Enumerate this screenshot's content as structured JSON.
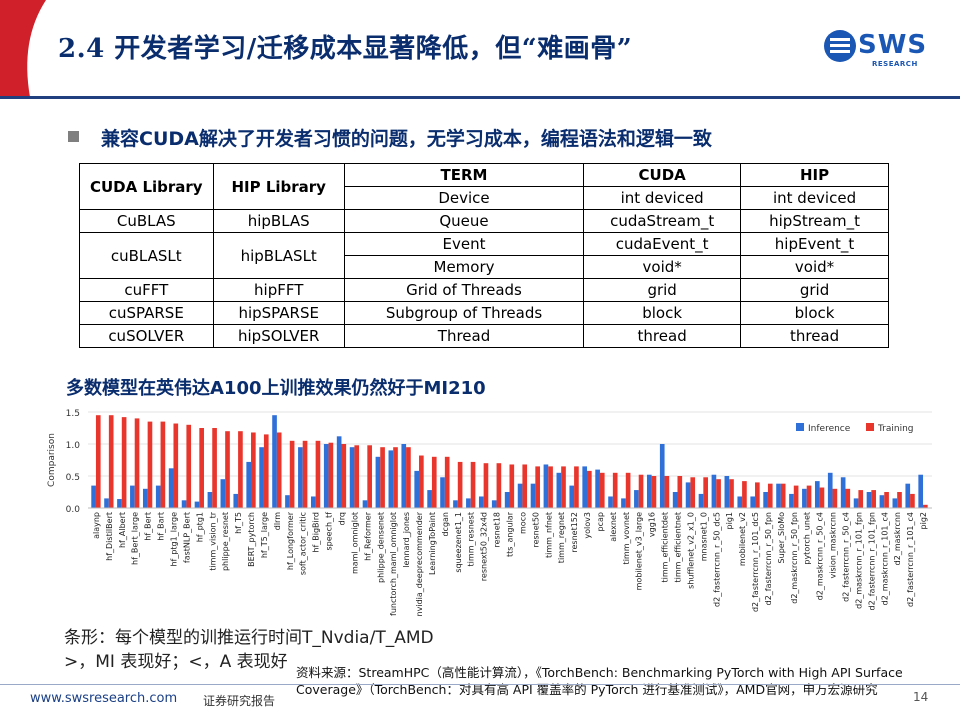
{
  "header": {
    "title": "2.4 开发者学习/迁移成本显著降低，但“难画骨”",
    "logo_text": "SWS",
    "logo_sub": "RESEARCH"
  },
  "colors": {
    "title": "#0a2d6e",
    "inference": "#2f6fd8",
    "training": "#e8362d",
    "accent_red": "#d0202a"
  },
  "bullet": {
    "icon": "square-bullet-icon",
    "text": "兼容CUDA解决了开发者习惯的问题，无学习成本，编程语法和逻辑一致"
  },
  "library_table": {
    "headers": [
      "CUDA Library",
      "HIP Library"
    ],
    "rows": [
      [
        "CuBLAS",
        "hipBLAS"
      ],
      [
        "cuBLASLt",
        "hipBLASLt"
      ],
      [
        "cuFFT",
        "hipFFT"
      ],
      [
        "cuSPARSE",
        "hipSPARSE"
      ],
      [
        "cuSOLVER",
        "hipSOLVER"
      ]
    ]
  },
  "term_table": {
    "headers": [
      "TERM",
      "CUDA",
      "HIP"
    ],
    "rows": [
      [
        "Device",
        "int deviced",
        "int deviced"
      ],
      [
        "Queue",
        "cudaStream_t",
        "hipStream_t"
      ],
      [
        "Event",
        "cudaEvent_t",
        "hipEvent_t"
      ],
      [
        "Memory",
        "void*",
        "void*"
      ],
      [
        "Grid of  Threads",
        "grid",
        "grid"
      ],
      [
        "Subgroup of Threads",
        "block",
        "block"
      ],
      [
        "Thread",
        "thread",
        "thread"
      ]
    ]
  },
  "chart_title": "多数模型在英伟达A100上训推效果仍然好于MI210",
  "chart_data": {
    "type": "bar",
    "title": "",
    "ylabel": "Comparison",
    "xlabel": "",
    "ylim": [
      0,
      1.5
    ],
    "yticks": [
      "0.0",
      "0.5",
      "1.0",
      "1.5"
    ],
    "grid": true,
    "legend_position": "top-right",
    "categories": [
      "alaynp",
      "hf_DistilBert",
      "hf_Albert",
      "hf_Bert_large",
      "hf_Bert",
      "hf_Bart",
      "hf_ptg1_large",
      "fastNLP_Bert",
      "hf_ptg1",
      "timm_vision_tr",
      "phlippe_resnet",
      "hf_T5",
      "BERT_pytorch",
      "hf_T5_large",
      "dlrm",
      "hf_Longformer",
      "soft_actor_critic",
      "hf_BigBird",
      "speech_tf",
      "drq",
      "maml_omniglot",
      "hf_Reformer",
      "phlippe_densenet",
      "functorch_maml_omniglot",
      "lennard_jones",
      "nvidia_deeprecommender",
      "LearningToPaint",
      "dcgan",
      "squeezenet1_1",
      "timm_resnest",
      "resnext50_32x4d",
      "resnet18",
      "tts_angular",
      "moco",
      "resnet50",
      "timm_nfnet",
      "timm_regnet",
      "resnet152",
      "yolov3",
      "pcap",
      "alexnet",
      "timm_vovnet",
      "mobilenet_v3_large",
      "vgg16",
      "timm_efficientdet",
      "timm_efficientnet",
      "shufflenet_v2_x1_0",
      "mnasnet1_0",
      "d2_fasterrcnn_r_50_dc5",
      "pig1",
      "mobilenet_v2",
      "d2_fasterrcnn_r_101_dc5",
      "d2_fasterrcnn_r_50_fpn",
      "Super_SloMo",
      "d2_maskrcnn_r_50_fpn",
      "pytorch_unet",
      "d2_maskrcnn_r_50_c4",
      "vision_maskrcnn",
      "d2_fasterrcnn_r_50_c4",
      "d2_maskrcnn_r_101_fpn",
      "d2_fasterrcnn_r_101_fpn",
      "d2_maskrcnn_r_101_c4",
      "d2_maskrcnn",
      "d2_fasterrcnn_r_101_c4",
      "pig2"
    ],
    "series": [
      {
        "name": "Inference",
        "color": "#2f6fd8",
        "values": [
          0.35,
          0.15,
          0.14,
          0.35,
          0.3,
          0.35,
          0.62,
          0.12,
          0.1,
          0.25,
          0.45,
          0.22,
          0.72,
          0.95,
          1.45,
          0.2,
          0.95,
          0.18,
          1.0,
          1.12,
          0.95,
          0.12,
          0.8,
          0.9,
          1.0,
          0.58,
          0.28,
          0.48,
          0.12,
          0.15,
          0.18,
          0.12,
          0.25,
          0.38,
          0.38,
          0.68,
          0.55,
          0.35,
          0.65,
          0.6,
          0.18,
          0.15,
          0.28,
          0.52,
          1.0,
          0.25,
          0.4,
          0.22,
          0.52,
          0.5,
          0.18,
          0.18,
          0.25,
          0.38,
          0.22,
          0.3,
          0.42,
          0.55,
          0.48,
          0.15,
          0.25,
          0.2,
          0.15,
          0.38,
          0.52
        ]
      },
      {
        "name": "Training",
        "color": "#e8362d",
        "values": [
          1.45,
          1.45,
          1.42,
          1.4,
          1.35,
          1.35,
          1.32,
          1.3,
          1.25,
          1.25,
          1.2,
          1.2,
          1.18,
          1.15,
          1.18,
          1.05,
          1.05,
          1.05,
          1.02,
          1.0,
          0.98,
          0.98,
          0.95,
          0.95,
          0.95,
          0.82,
          0.8,
          0.8,
          0.72,
          0.72,
          0.7,
          0.7,
          0.68,
          0.68,
          0.65,
          0.65,
          0.65,
          0.65,
          0.58,
          0.55,
          0.55,
          0.55,
          0.52,
          0.5,
          0.5,
          0.5,
          0.48,
          0.48,
          0.45,
          0.45,
          0.42,
          0.4,
          0.38,
          0.38,
          0.35,
          0.35,
          0.32,
          0.3,
          0.3,
          0.28,
          0.28,
          0.25,
          0.25,
          0.22,
          0.05
        ]
      }
    ]
  },
  "notes": {
    "line1": "条形：每个模型的训推运行时间T_Nvdia/T_AMD",
    "line2": ">，MI      表现好；<，A      表现好"
  },
  "source": "资料来源：StreamHPC（高性能计算流），《TorchBench: Benchmarking PyTorch with High API Surface Coverage》（TorchBench：对具有高 API 覆盖率的 PyTorch 进行基准测试》，AMD官网，申万宏源研究",
  "footer": {
    "url": "www.swsresearch.com",
    "category": "证券研究报告",
    "page": "14"
  }
}
